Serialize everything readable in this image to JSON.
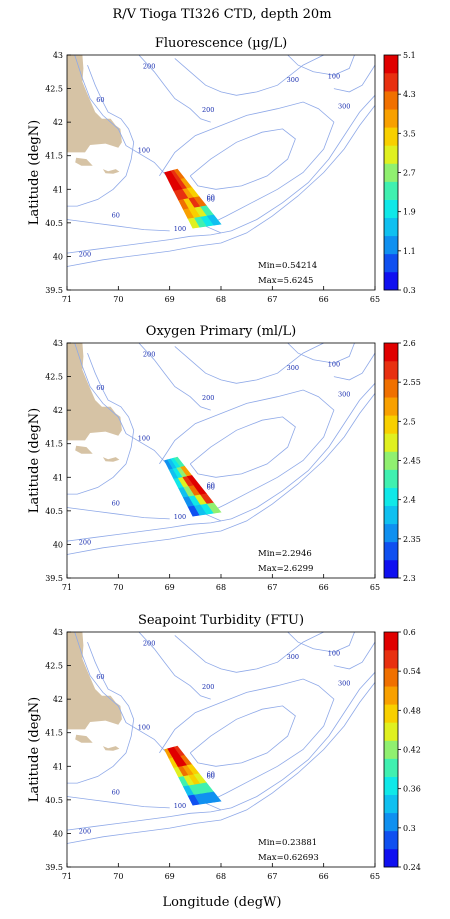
{
  "page_title": "R/V Tioga TI326 CTD, depth 20m",
  "xlabel": "Longitude (degW)",
  "ylabel": "Latitude (degN)",
  "colors": {
    "land": "#d6c3a5",
    "contour": "#8fa9e8",
    "contour_label": "#1a2fb0",
    "frame": "#000000",
    "palette": [
      "#1010f0",
      "#1050f0",
      "#1090f0",
      "#10c0f0",
      "#10e8e8",
      "#40f0b0",
      "#90f070",
      "#e0f020",
      "#f8d000",
      "#f8a000",
      "#f07000",
      "#e83010",
      "#e00000"
    ]
  },
  "chart_data": [
    {
      "type": "heatmap",
      "title": "Fluorescence (µg/L)",
      "xlabel": "",
      "ylabel": "Latitude (degN)",
      "xlim": [
        71,
        65
      ],
      "ylim": [
        39.5,
        43
      ],
      "x_ticks": [
        "71",
        "70",
        "69",
        "68",
        "67",
        "66",
        "65"
      ],
      "y_ticks": [
        "39.5",
        "40",
        "40.5",
        "41",
        "41.5",
        "42",
        "42.5",
        "43"
      ],
      "colorbar": {
        "min": 0.3,
        "max": 5.1,
        "ticks": [
          "0.3",
          "1.1",
          "1.9",
          "2.7",
          "3.5",
          "4.3",
          "5.1"
        ]
      },
      "min_label": "Min=0.54214",
      "max_label": "Max=5.6245",
      "contour_labels": [
        {
          "text": "200",
          "lon": 69.4,
          "lat": 42.8
        },
        {
          "text": "60",
          "lon": 70.35,
          "lat": 42.3
        },
        {
          "text": "200",
          "lon": 68.25,
          "lat": 42.15
        },
        {
          "text": "100",
          "lon": 69.5,
          "lat": 41.55
        },
        {
          "text": "300",
          "lon": 66.6,
          "lat": 42.6
        },
        {
          "text": "100",
          "lon": 65.8,
          "lat": 42.65
        },
        {
          "text": "300",
          "lon": 65.6,
          "lat": 42.2
        },
        {
          "text": "60",
          "lon": 68.2,
          "lat": 40.85
        },
        {
          "text": "60",
          "lon": 70.05,
          "lat": 40.58
        },
        {
          "text": "100",
          "lon": 68.8,
          "lat": 40.38
        },
        {
          "text": "200",
          "lon": 70.65,
          "lat": 40.0
        }
      ],
      "transect_grid": [
        [
          5.3,
          5.1,
          4.7,
          4.3
        ],
        [
          5.0,
          5.2,
          4.6,
          3.9
        ],
        [
          4.6,
          4.4,
          3.8,
          3.3
        ],
        [
          4.2,
          3.6,
          4.4,
          4.0
        ],
        [
          3.8,
          3.4,
          3.0,
          2.5
        ],
        [
          2.9,
          2.4,
          1.9,
          1.5
        ]
      ]
    },
    {
      "type": "heatmap",
      "title": "Oxygen Primary (ml/L)",
      "xlabel": "",
      "ylabel": "Latitude (degN)",
      "xlim": [
        71,
        65
      ],
      "ylim": [
        39.5,
        43
      ],
      "x_ticks": [
        "71",
        "70",
        "69",
        "68",
        "67",
        "66",
        "65"
      ],
      "y_ticks": [
        "39.5",
        "40",
        "40.5",
        "41",
        "41.5",
        "42",
        "42.5",
        "43"
      ],
      "colorbar": {
        "min": 2.3,
        "max": 2.6,
        "ticks": [
          "2.3",
          "2.35",
          "2.4",
          "2.45",
          "2.5",
          "2.55",
          "2.6"
        ]
      },
      "min_label": "Min=2.2946",
      "max_label": "Max=2.6299",
      "contour_labels": [
        {
          "text": "200",
          "lon": 69.4,
          "lat": 42.8
        },
        {
          "text": "60",
          "lon": 70.35,
          "lat": 42.3
        },
        {
          "text": "200",
          "lon": 68.25,
          "lat": 42.15
        },
        {
          "text": "100",
          "lon": 69.5,
          "lat": 41.55
        },
        {
          "text": "300",
          "lon": 66.6,
          "lat": 42.6
        },
        {
          "text": "100",
          "lon": 65.8,
          "lat": 42.65
        },
        {
          "text": "300",
          "lon": 65.6,
          "lat": 42.2
        },
        {
          "text": "60",
          "lon": 68.2,
          "lat": 40.85
        },
        {
          "text": "60",
          "lon": 70.05,
          "lat": 40.58
        },
        {
          "text": "100",
          "lon": 68.8,
          "lat": 40.38
        },
        {
          "text": "200",
          "lon": 70.65,
          "lat": 40.0
        }
      ],
      "transect_grid": [
        [
          2.36,
          2.37,
          2.4,
          2.42
        ],
        [
          2.38,
          2.4,
          2.45,
          2.52
        ],
        [
          2.4,
          2.47,
          2.56,
          2.6
        ],
        [
          2.38,
          2.45,
          2.55,
          2.62
        ],
        [
          2.36,
          2.4,
          2.48,
          2.56
        ],
        [
          2.34,
          2.37,
          2.4,
          2.44
        ]
      ]
    },
    {
      "type": "heatmap",
      "title": "Seapoint Turbidity (FTU)",
      "xlabel": "Longitude (degW)",
      "ylabel": "Latitude (degN)",
      "xlim": [
        71,
        65
      ],
      "ylim": [
        39.5,
        43
      ],
      "x_ticks": [
        "71",
        "70",
        "69",
        "68",
        "67",
        "66",
        "65"
      ],
      "y_ticks": [
        "39.5",
        "40",
        "40.5",
        "41",
        "41.5",
        "42",
        "42.5",
        "43"
      ],
      "colorbar": {
        "min": 0.24,
        "max": 0.6,
        "ticks": [
          "0.24",
          "0.3",
          "0.36",
          "0.42",
          "0.48",
          "0.54",
          "0.6"
        ]
      },
      "min_label": "Min=0.23881",
      "max_label": "Max=0.62693",
      "contour_labels": [
        {
          "text": "200",
          "lon": 69.4,
          "lat": 42.8
        },
        {
          "text": "60",
          "lon": 70.35,
          "lat": 42.3
        },
        {
          "text": "200",
          "lon": 68.25,
          "lat": 42.15
        },
        {
          "text": "100",
          "lon": 69.5,
          "lat": 41.55
        },
        {
          "text": "300",
          "lon": 66.6,
          "lat": 42.6
        },
        {
          "text": "100",
          "lon": 65.8,
          "lat": 42.65
        },
        {
          "text": "300",
          "lon": 65.6,
          "lat": 42.2
        },
        {
          "text": "60",
          "lon": 68.2,
          "lat": 40.85
        },
        {
          "text": "60",
          "lon": 70.05,
          "lat": 40.58
        },
        {
          "text": "100",
          "lon": 68.8,
          "lat": 40.38
        },
        {
          "text": "200",
          "lon": 70.65,
          "lat": 40.0
        }
      ],
      "transect_grid": [
        [
          0.5,
          0.6,
          0.62,
          0.56
        ],
        [
          0.48,
          0.58,
          0.6,
          0.52
        ],
        [
          0.45,
          0.52,
          0.5,
          0.47
        ],
        [
          0.4,
          0.44,
          0.47,
          0.46
        ],
        [
          0.34,
          0.38,
          0.4,
          0.39
        ],
        [
          0.28,
          0.3,
          0.32,
          0.31
        ]
      ]
    }
  ]
}
